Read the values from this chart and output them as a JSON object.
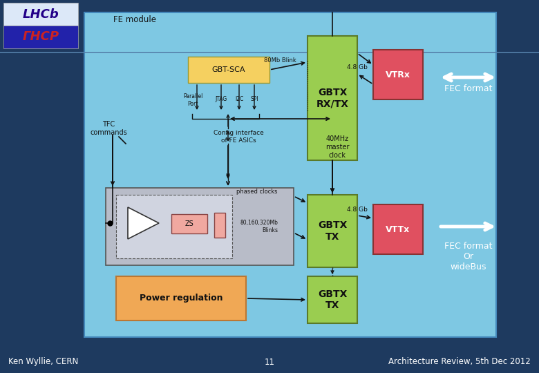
{
  "bg_color": "#1e3a5f",
  "footer_left": "Ken Wyllie, CERN",
  "footer_center": "11",
  "footer_right": "Architecture Review, 5th Dec 2012",
  "footer_color": "#ffffff",
  "footer_fontsize": 8.5,
  "diagram_bg": "#7ec8e3",
  "fe_module_label": "FE module",
  "gbt_sca_label": "GBT-SCA",
  "gbtx_rxtx_label": "GBTX\nRX/TX",
  "gbtx_tx1_label": "GBTX\nTX",
  "gbtx_tx2_label": "GBTX\nTX",
  "vtrx_label": "VTRx",
  "vttx_label": "VTTx",
  "power_reg_label": "Power regulation",
  "zs_label": "ZS",
  "tfc_label": "TFC\ncommands",
  "blink_label": "80Mb Blink",
  "gb48_label1": "4.8 Gb",
  "gb48_label2": "4.8 Gb",
  "clock_label": "40MHz\nmaster\nclock",
  "phased_label": "phased clocks",
  "blinks_label": "80,160,320Mb\nBlinks",
  "config_label": "Config interface\nof FE ASICs",
  "parallel_label": "Parallel\nPort",
  "jtag_label": "JTAG",
  "i2c_label": "I2C",
  "spi_label": "SPI",
  "fec_format1": "FEC format",
  "fec_format2": "FEC format\nOr\nwideBus",
  "green_color": "#9acd50",
  "red_color": "#e05060",
  "yellow_color": "#f5d060",
  "orange_color": "#f0a855",
  "gray_color": "#bbbec8",
  "pink_color": "#f0a8a0",
  "white_color": "#ffffff",
  "black_color": "#000000"
}
